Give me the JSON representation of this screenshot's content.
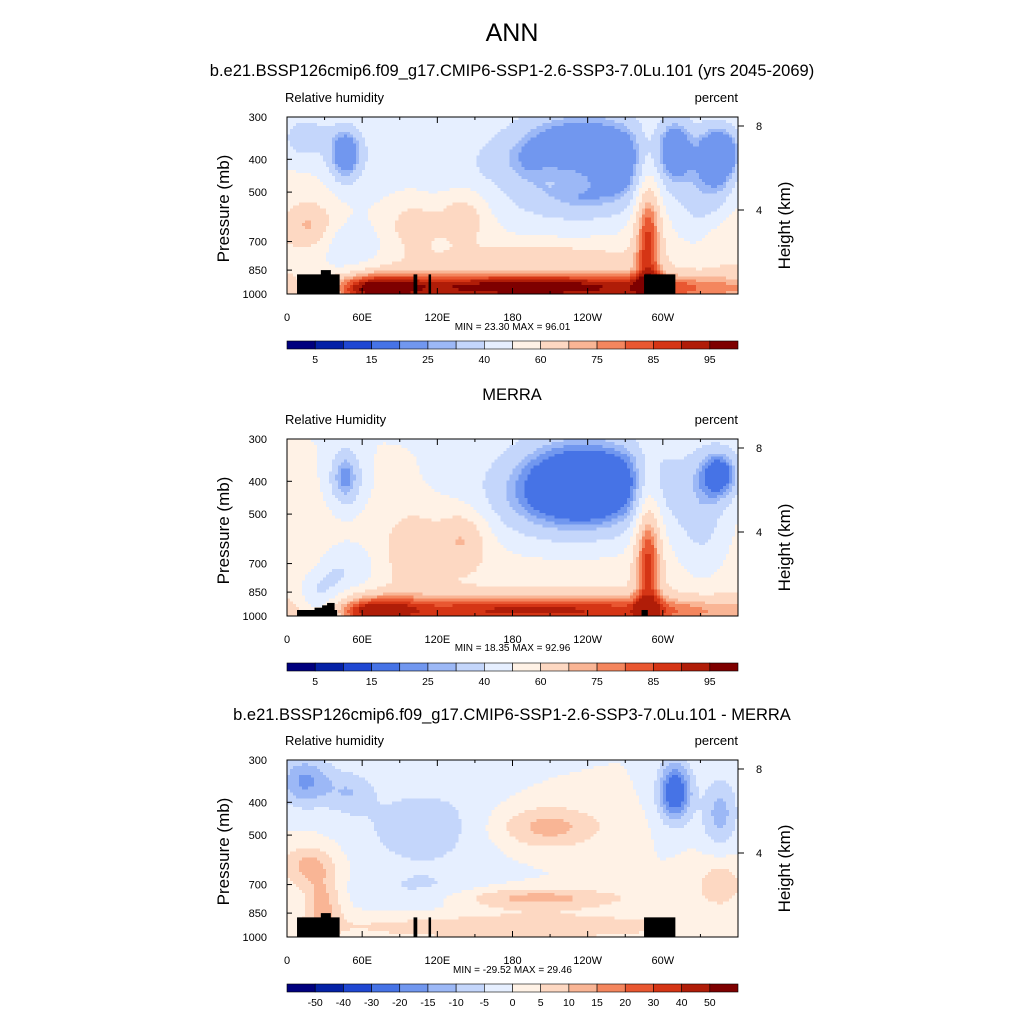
{
  "title": "ANN",
  "colors": {
    "abs_levels": [
      "#00007e",
      "#0421a6",
      "#1f47d2",
      "#4673e6",
      "#7197ef",
      "#9cb8f6",
      "#c4d6fb",
      "#e6efff",
      "#fff2e6",
      "#fdd8c2",
      "#f9b595",
      "#f4865e",
      "#e95731",
      "#d53515",
      "#b01d08",
      "#7e0000"
    ],
    "diff_levels": [
      "#00007e",
      "#0421a6",
      "#1f47d2",
      "#4673e6",
      "#7197ef",
      "#9cb8f6",
      "#c4d6fb",
      "#e6efff",
      "#fff2e6",
      "#fdd8c2",
      "#f9b595",
      "#f4865e",
      "#e95731",
      "#d53515",
      "#b01d08",
      "#7e0000"
    ],
    "terrain": "#000000"
  },
  "chart_data": [
    {
      "type": "heatmap",
      "title": "b.e21.BSSP126cmip6.f09_g17.CMIP6-SSP1-2.6-SSP3-7.0Lu.101 (yrs 2045-2069)",
      "left_label": "Relative humidity",
      "right_label": "percent",
      "ylabel": "Pressure (mb)",
      "ylabel_right": "Height (km)",
      "x_ticks": [
        "0",
        "60E",
        "120E",
        "180",
        "120W",
        "60W"
      ],
      "y_ticks": [
        "300",
        "400",
        "500",
        "700",
        "850",
        "1000"
      ],
      "y_ticks_right": [
        "8",
        "4"
      ],
      "ylim": [
        1000,
        300
      ],
      "min_max": "MIN =  23.30  MAX =  96.01",
      "colorbar_labels": [
        "5",
        "15",
        "25",
        "40",
        "60",
        "75",
        "85",
        "95"
      ],
      "field": "model"
    },
    {
      "type": "heatmap",
      "title": "MERRA",
      "left_label": "Relative Humidity",
      "right_label": "percent",
      "ylabel": "Pressure (mb)",
      "ylabel_right": "Height (km)",
      "x_ticks": [
        "0",
        "60E",
        "120E",
        "180",
        "120W",
        "60W"
      ],
      "y_ticks": [
        "300",
        "400",
        "500",
        "700",
        "850",
        "1000"
      ],
      "y_ticks_right": [
        "8",
        "4"
      ],
      "ylim": [
        1000,
        300
      ],
      "min_max": "MIN =  18.35  MAX =  92.96",
      "colorbar_labels": [
        "5",
        "15",
        "25",
        "40",
        "60",
        "75",
        "85",
        "95"
      ],
      "field": "obs"
    },
    {
      "type": "heatmap",
      "title": "b.e21.BSSP126cmip6.f09_g17.CMIP6-SSP1-2.6-SSP3-7.0Lu.101 - MERRA",
      "left_label": "Relative humidity",
      "right_label": "percent",
      "ylabel": "Pressure (mb)",
      "ylabel_right": "Height (km)",
      "x_ticks": [
        "0",
        "60E",
        "120E",
        "180",
        "120W",
        "60W"
      ],
      "y_ticks": [
        "300",
        "400",
        "500",
        "700",
        "850",
        "1000"
      ],
      "y_ticks_right": [
        "8",
        "4"
      ],
      "ylim": [
        1000,
        300
      ],
      "min_max": "MIN = -29.52  MAX =  29.46",
      "colorbar_labels": [
        "-50",
        "-40",
        "-30",
        "-20",
        "-15",
        "-10",
        "-5",
        "0",
        "5",
        "10",
        "15",
        "20",
        "30",
        "40",
        "50"
      ],
      "field": "diff"
    }
  ]
}
